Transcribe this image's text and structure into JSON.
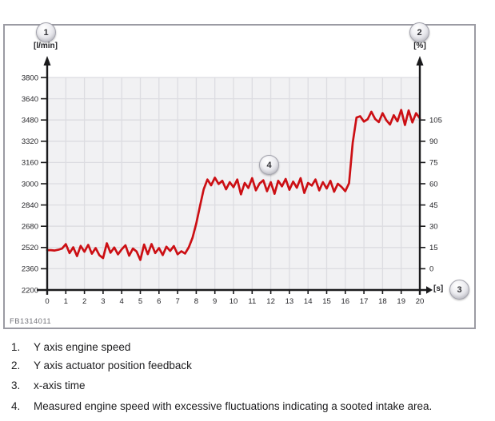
{
  "figure": {
    "code": "FB1314011",
    "units": {
      "left": "[l/min]",
      "right": "[%]",
      "x": "[s]"
    },
    "callouts": {
      "c1": "1",
      "c2": "2",
      "c3": "3",
      "c4": "4"
    }
  },
  "chart_data": {
    "type": "line",
    "title": "",
    "grid": true,
    "left_axis": {
      "unit": "[l/min]",
      "min": 2200,
      "max": 3800,
      "ticks": [
        2200,
        2360,
        2520,
        2680,
        2840,
        3000,
        3160,
        3320,
        3480,
        3640,
        3800
      ]
    },
    "right_axis": {
      "unit": "[%]",
      "min": 0,
      "max": 105,
      "ticks": [
        0,
        15,
        30,
        45,
        60,
        75,
        90,
        105
      ],
      "rpm_at_0pct": 2360,
      "rpm_per_15pct": 160
    },
    "x_axis": {
      "unit": "[s]",
      "min": 0,
      "max": 20,
      "ticks": [
        0,
        1,
        2,
        3,
        4,
        5,
        6,
        7,
        8,
        9,
        10,
        11,
        12,
        13,
        14,
        15,
        16,
        17,
        18,
        19,
        20
      ]
    },
    "series": [
      {
        "name": "measured-engine-speed",
        "color": "#cc0f14",
        "t_start": 0,
        "t_step": 0.2,
        "values": [
          2500,
          2500,
          2497,
          2503,
          2512,
          2545,
          2478,
          2522,
          2455,
          2532,
          2488,
          2540,
          2473,
          2516,
          2462,
          2440,
          2552,
          2480,
          2520,
          2468,
          2506,
          2536,
          2458,
          2512,
          2490,
          2426,
          2542,
          2470,
          2546,
          2478,
          2516,
          2463,
          2526,
          2494,
          2531,
          2469,
          2492,
          2474,
          2522,
          2592,
          2700,
          2832,
          2958,
          3032,
          2988,
          3046,
          2998,
          3022,
          2958,
          3012,
          2974,
          3032,
          2920,
          3006,
          2968,
          3042,
          2950,
          3002,
          3026,
          2944,
          3012,
          2924,
          3022,
          2980,
          3036,
          2954,
          3016,
          2970,
          3042,
          2930,
          3006,
          2986,
          3032,
          2950,
          3012,
          2964,
          3022,
          2940,
          3000,
          2976,
          2944,
          3004,
          3310,
          3498,
          3508,
          3468,
          3486,
          3542,
          3488,
          3464,
          3532,
          3478,
          3446,
          3516,
          3470,
          3556,
          3442,
          3552,
          3462,
          3532,
          3492
        ]
      }
    ],
    "annotations": [
      {
        "label": "4",
        "t": 11.9,
        "value": 3140
      }
    ]
  },
  "legend": {
    "items": [
      {
        "num": "1.",
        "text": "Y axis engine speed"
      },
      {
        "num": "2.",
        "text": "Y axis actuator position feedback"
      },
      {
        "num": "3.",
        "text": "x-axis time"
      },
      {
        "num": "4.",
        "text": "Measured engine speed with excessive fluctuations indicating a sooted intake area."
      }
    ]
  },
  "colors": {
    "trace": "#cc0f14",
    "plot_background": "#f1f1f3",
    "gridline": "#dcdce1",
    "axis": "#1a1a1c",
    "frame_border": "#9b9ba3",
    "tick_text": "#26262a",
    "figure_code_text": "#73737a"
  }
}
